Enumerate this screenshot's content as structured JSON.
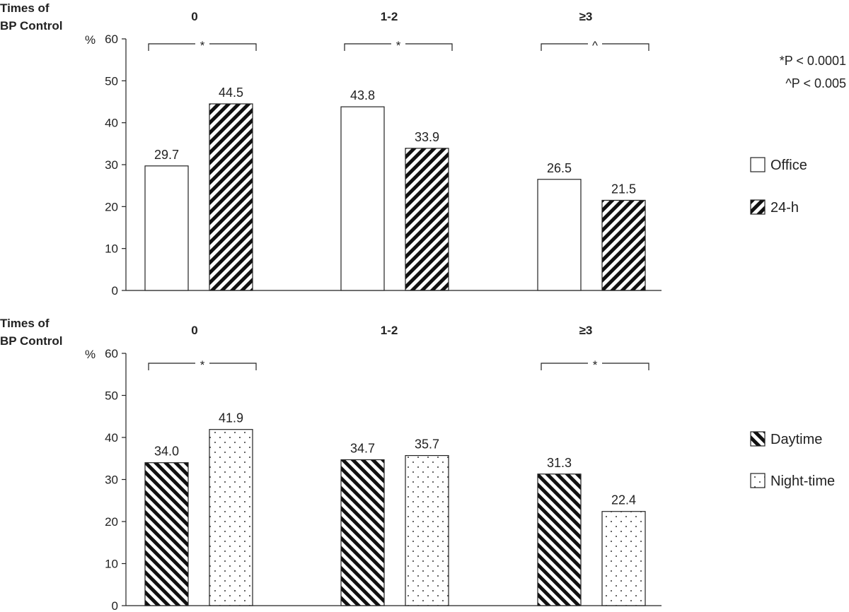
{
  "chart_data": [
    {
      "type": "bar",
      "row_label": [
        "Times of",
        "BP Control"
      ],
      "unit_label": "%",
      "categories": [
        "0",
        "1-2",
        "≥3"
      ],
      "series": [
        {
          "name": "Office",
          "pattern": "blank",
          "values": [
            29.7,
            43.8,
            26.5
          ]
        },
        {
          "name": "24-h",
          "pattern": "diag-up",
          "values": [
            44.5,
            33.9,
            21.5
          ]
        }
      ],
      "value_labels": [
        [
          "29.7",
          "43.8",
          "26.5"
        ],
        [
          "44.5",
          "33.9",
          "21.5"
        ]
      ],
      "ylim": [
        0,
        60
      ],
      "yticks": [
        0,
        10,
        20,
        30,
        40,
        50,
        60
      ],
      "significance": [
        "*",
        "*",
        "^"
      ],
      "footnotes": [
        "*P < 0.0001",
        "^P < 0.005"
      ]
    },
    {
      "type": "bar",
      "row_label": [
        "Times of",
        "BP Control"
      ],
      "unit_label": "%",
      "categories": [
        "0",
        "1-2",
        "≥3"
      ],
      "series": [
        {
          "name": "Daytime",
          "pattern": "diag-down",
          "values": [
            34.0,
            34.7,
            31.3
          ]
        },
        {
          "name": "Night-time",
          "pattern": "dots",
          "values": [
            41.9,
            35.7,
            22.4
          ]
        }
      ],
      "value_labels": [
        [
          "34.0",
          "34.7",
          "31.3"
        ],
        [
          "41.9",
          "35.7",
          "22.4"
        ]
      ],
      "ylim": [
        0,
        60
      ],
      "yticks": [
        0,
        10,
        20,
        30,
        40,
        50,
        60
      ],
      "significance": [
        "*",
        null,
        "*"
      ]
    }
  ]
}
